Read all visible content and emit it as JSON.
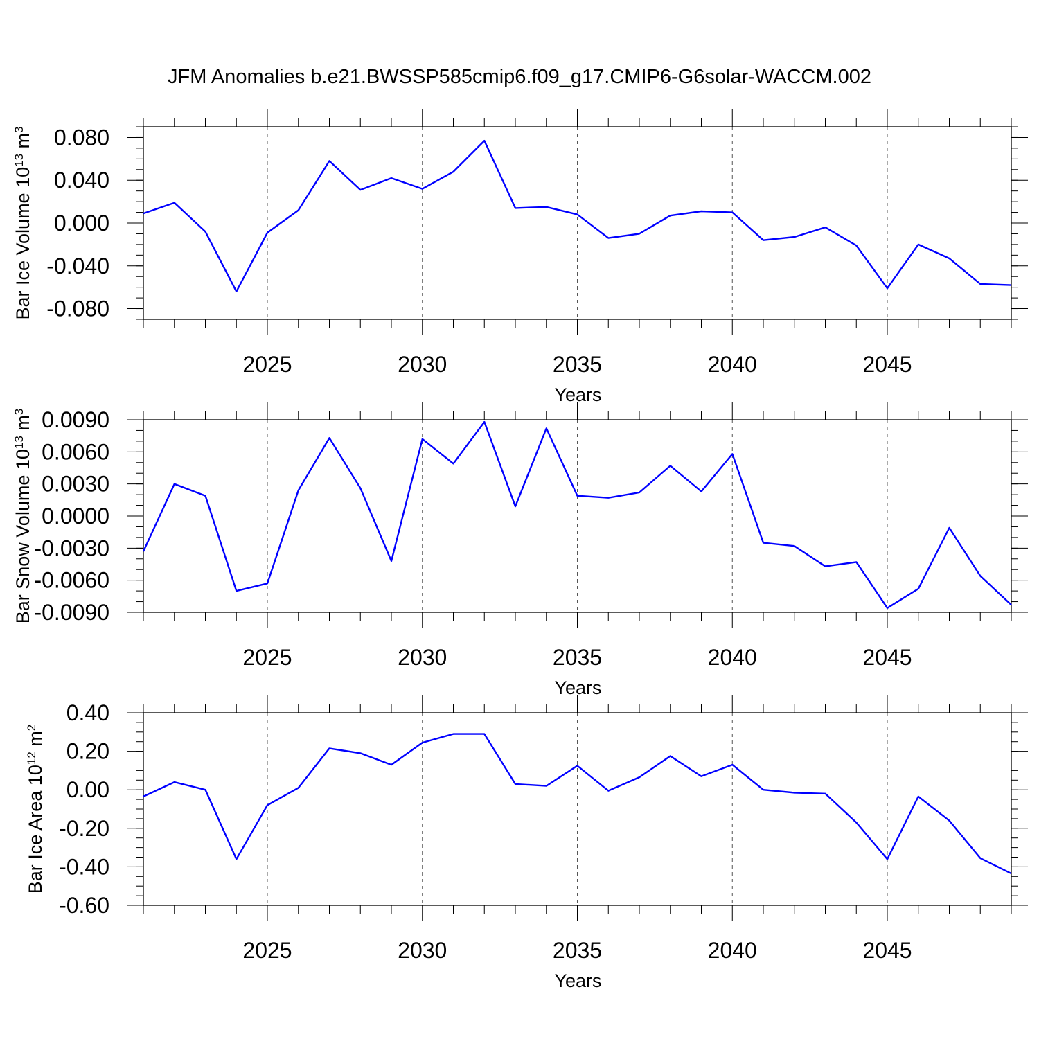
{
  "figure_title": "JFM Anomalies b.e21.BWSSP585cmip6.f09_g17.CMIP6-G6solar-WACCM.002",
  "line_color": "#0000ff",
  "chart_data": [
    {
      "type": "line",
      "ylabel": "Bar Ice Volume 10",
      "ylabel_exp": "13",
      "ylabel_unit": " m",
      "ylabel_unit_exp": "3",
      "xlabel": "Years",
      "xlim": [
        2021,
        2049
      ],
      "ylim": [
        -0.09,
        0.09
      ],
      "y_ticks": [
        -0.08,
        -0.04,
        0.0,
        0.04,
        0.08
      ],
      "y_tick_labels": [
        "-0.080",
        "-0.040",
        "0.000",
        "0.040",
        "0.080"
      ],
      "y_minor_step": 0.01,
      "x_ticks": [
        2025,
        2030,
        2035,
        2040,
        2045
      ],
      "x_tick_labels": [
        "2025",
        "2030",
        "2035",
        "2040",
        "2045"
      ],
      "grid": "vertical dashed at major x ticks",
      "x": [
        2021,
        2022,
        2023,
        2024,
        2025,
        2026,
        2027,
        2028,
        2029,
        2030,
        2031,
        2032,
        2033,
        2034,
        2035,
        2036,
        2037,
        2038,
        2039,
        2040,
        2041,
        2042,
        2043,
        2044,
        2045,
        2046,
        2047,
        2048,
        2049
      ],
      "values": [
        0.009,
        0.019,
        -0.008,
        -0.064,
        -0.009,
        0.012,
        0.058,
        0.031,
        0.042,
        0.032,
        0.048,
        0.077,
        0.014,
        0.015,
        0.008,
        -0.014,
        -0.01,
        0.007,
        0.011,
        0.01,
        -0.016,
        -0.013,
        -0.004,
        -0.021,
        -0.061,
        -0.02,
        -0.033,
        -0.057,
        -0.058
      ]
    },
    {
      "type": "line",
      "ylabel": "Bar Snow Volume 10",
      "ylabel_exp": "13",
      "ylabel_unit": " m",
      "ylabel_unit_exp": "3",
      "xlabel": "Years",
      "xlim": [
        2021,
        2049
      ],
      "ylim": [
        -0.009,
        0.009
      ],
      "y_ticks": [
        -0.009,
        -0.006,
        -0.003,
        0.0,
        0.003,
        0.006,
        0.009
      ],
      "y_tick_labels": [
        "-0.0090",
        "-0.0060",
        "-0.0030",
        "0.0000",
        "0.0030",
        "0.0060",
        "0.0090"
      ],
      "y_minor_step": 0.001,
      "x_ticks": [
        2025,
        2030,
        2035,
        2040,
        2045
      ],
      "x_tick_labels": [
        "2025",
        "2030",
        "2035",
        "2040",
        "2045"
      ],
      "grid": "vertical dashed at major x ticks",
      "x": [
        2021,
        2022,
        2023,
        2024,
        2025,
        2026,
        2027,
        2028,
        2029,
        2030,
        2031,
        2032,
        2033,
        2034,
        2035,
        2036,
        2037,
        2038,
        2039,
        2040,
        2041,
        2042,
        2043,
        2044,
        2045,
        2046,
        2047,
        2048,
        2049
      ],
      "values": [
        -0.0033,
        0.003,
        0.0019,
        -0.007,
        -0.0063,
        0.0024,
        0.0073,
        0.0026,
        -0.0042,
        0.0072,
        0.0049,
        0.0088,
        0.0009,
        0.0082,
        0.0019,
        0.0017,
        0.0022,
        0.0047,
        0.0023,
        0.0058,
        -0.0025,
        -0.0028,
        -0.0047,
        -0.0043,
        -0.0086,
        -0.0068,
        -0.0011,
        -0.0056,
        -0.0083
      ]
    },
    {
      "type": "line",
      "ylabel": "Bar Ice Area 10",
      "ylabel_exp": "12",
      "ylabel_unit": " m",
      "ylabel_unit_exp": "2",
      "xlabel": "Years",
      "xlim": [
        2021,
        2049
      ],
      "ylim": [
        -0.6,
        0.4
      ],
      "y_ticks": [
        -0.6,
        -0.4,
        -0.2,
        0.0,
        0.2,
        0.4
      ],
      "y_tick_labels": [
        "-0.60",
        "-0.40",
        "-0.20",
        "0.00",
        "0.20",
        "0.40"
      ],
      "y_minor_step": 0.05,
      "x_ticks": [
        2025,
        2030,
        2035,
        2040,
        2045
      ],
      "x_tick_labels": [
        "2025",
        "2030",
        "2035",
        "2040",
        "2045"
      ],
      "grid": "vertical dashed at major x ticks",
      "x": [
        2021,
        2022,
        2023,
        2024,
        2025,
        2026,
        2027,
        2028,
        2029,
        2030,
        2031,
        2032,
        2033,
        2034,
        2035,
        2036,
        2037,
        2038,
        2039,
        2040,
        2041,
        2042,
        2043,
        2044,
        2045,
        2046,
        2047,
        2048,
        2049
      ],
      "values": [
        -0.035,
        0.04,
        0.0,
        -0.36,
        -0.08,
        0.01,
        0.215,
        0.19,
        0.13,
        0.245,
        0.29,
        0.29,
        0.03,
        0.02,
        0.125,
        -0.005,
        0.065,
        0.175,
        0.07,
        0.13,
        0.0,
        -0.015,
        -0.02,
        -0.17,
        -0.36,
        -0.035,
        -0.16,
        -0.355,
        -0.435
      ]
    }
  ]
}
